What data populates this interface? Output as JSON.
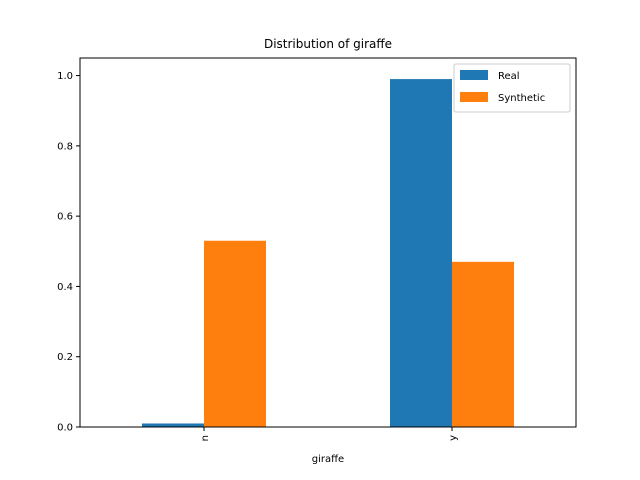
{
  "chart_data": {
    "type": "bar",
    "title": "Distribution of giraffe",
    "xlabel": "giraffe",
    "ylabel": "",
    "categories": [
      "n",
      "y"
    ],
    "series": [
      {
        "name": "Real",
        "values": [
          0.01,
          0.99
        ],
        "color": "#1f77b4"
      },
      {
        "name": "Synthetic",
        "values": [
          0.53,
          0.47
        ],
        "color": "#ff7f0e"
      }
    ],
    "ylim": [
      0,
      1.05
    ],
    "yticks": [
      "0.0",
      "0.2",
      "0.4",
      "0.6",
      "0.8",
      "1.0"
    ],
    "grid": false,
    "legend_position": "top-right"
  }
}
